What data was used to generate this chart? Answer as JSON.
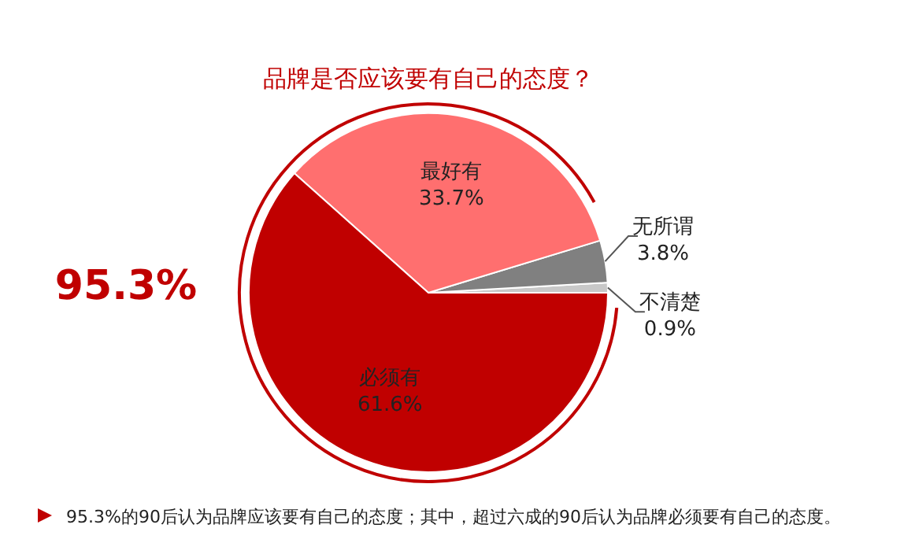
{
  "chart_data": {
    "type": "pie",
    "title": "品牌是否应该要有自己的态度？",
    "categories": [
      "不清楚",
      "无所谓",
      "最好有",
      "必须有"
    ],
    "values": [
      0.9,
      3.8,
      33.7,
      61.6
    ],
    "colors": [
      "#c8c8c8",
      "#808080",
      "#ff6f6f",
      "#c00000"
    ],
    "value_labels": [
      "0.9%",
      "3.8%",
      "33.7%",
      "61.6%"
    ],
    "annotations": [
      "95.3%",
      "95.3%的90后认为品牌应该要有自己的态度；其中，超过六成的90后认为品牌必须要有自己的态度。"
    ]
  }
}
